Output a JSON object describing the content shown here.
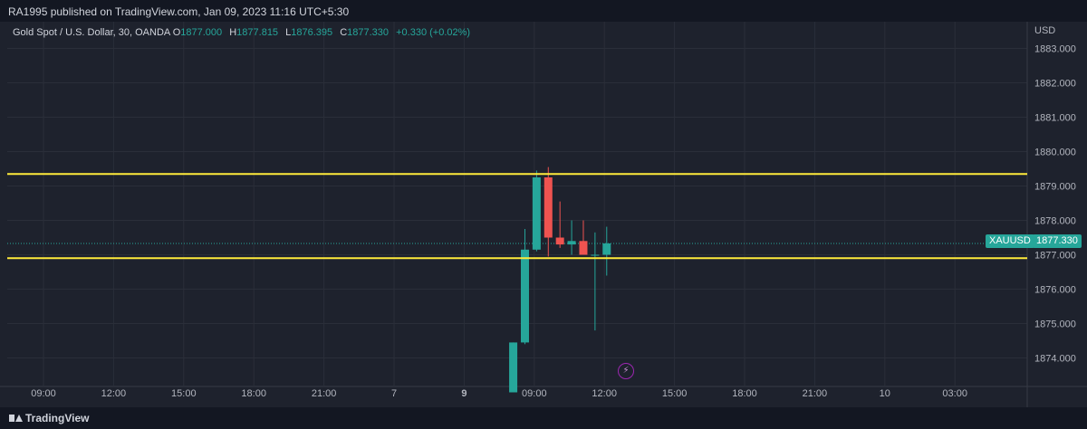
{
  "header": {
    "publish_line": "RA1995 published on TradingView.com, Jan 09, 2023 11:16 UTC+5:30"
  },
  "legend": {
    "symbol": "Gold Spot / U.S. Dollar, 30, OANDA",
    "o_label": "O",
    "o_value": "1877.000",
    "h_label": "H",
    "h_value": "1877.815",
    "l_label": "L",
    "l_value": "1876.395",
    "c_label": "C",
    "c_value": "1877.330",
    "change": "+0.330 (+0.02%)"
  },
  "price_tags": {
    "symbol": "XAUUSD",
    "last": "1877.330"
  },
  "footer": {
    "brand": "TradingView"
  },
  "colors": {
    "up": "#26a69a",
    "down": "#ef5350",
    "level_line": "#ffeb3b",
    "background": "#1e222d",
    "grid": "#2a2e39",
    "text": "#d1d4dc"
  },
  "chart_data": {
    "type": "candlestick",
    "currency_label": "USD",
    "ylim": [
      1873.25,
      1883.25
    ],
    "y_ticks": [
      "1874.000",
      "1875.000",
      "1876.000",
      "1877.000",
      "1878.000",
      "1879.000",
      "1880.000",
      "1881.000",
      "1882.000",
      "1883.000"
    ],
    "x_ticks": [
      {
        "label": "09:00",
        "pos": 0
      },
      {
        "label": "12:00",
        "pos": 6
      },
      {
        "label": "15:00",
        "pos": 12
      },
      {
        "label": "18:00",
        "pos": 18
      },
      {
        "label": "21:00",
        "pos": 24
      },
      {
        "label": "7",
        "pos": 30
      },
      {
        "label": "9",
        "pos": 36
      },
      {
        "label": "09:00",
        "pos": 42
      },
      {
        "label": "12:00",
        "pos": 48
      },
      {
        "label": "15:00",
        "pos": 54
      },
      {
        "label": "18:00",
        "pos": 60
      },
      {
        "label": "21:00",
        "pos": 66
      },
      {
        "label": "10",
        "pos": 72
      },
      {
        "label": "03:00",
        "pos": 78
      }
    ],
    "bold_x_ticks": [
      "9"
    ],
    "horizontal_levels": [
      1879.35,
      1876.9
    ],
    "last_price": 1877.33,
    "candles": [
      {
        "pos": 40.2,
        "o": 1873.0,
        "h": 1874.45,
        "l": 1873.0,
        "c": 1874.45
      },
      {
        "pos": 41.2,
        "o": 1874.45,
        "h": 1877.75,
        "l": 1874.4,
        "c": 1877.15
      },
      {
        "pos": 42.2,
        "o": 1877.15,
        "h": 1879.45,
        "l": 1877.1,
        "c": 1879.25
      },
      {
        "pos": 43.2,
        "o": 1879.25,
        "h": 1879.55,
        "l": 1876.95,
        "c": 1877.5
      },
      {
        "pos": 44.2,
        "o": 1877.5,
        "h": 1878.55,
        "l": 1877.2,
        "c": 1877.3
      },
      {
        "pos": 45.2,
        "o": 1877.3,
        "h": 1878.0,
        "l": 1877.0,
        "c": 1877.4
      },
      {
        "pos": 46.2,
        "o": 1877.4,
        "h": 1878.0,
        "l": 1877.0,
        "c": 1877.0
      },
      {
        "pos": 47.2,
        "o": 1877.0,
        "h": 1877.65,
        "l": 1874.8,
        "c": 1877.0
      },
      {
        "pos": 48.2,
        "o": 1877.0,
        "h": 1877.815,
        "l": 1876.395,
        "c": 1877.33
      }
    ]
  }
}
